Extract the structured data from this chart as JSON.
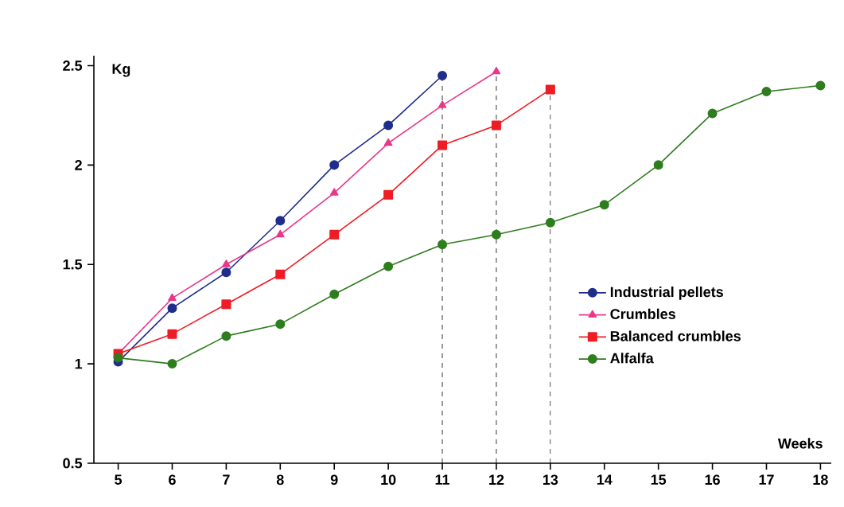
{
  "chart_data": {
    "type": "line",
    "xlabel": "Weeks",
    "ylabel": "Kg",
    "x": [
      5,
      6,
      7,
      8,
      9,
      10,
      11,
      12,
      13,
      14,
      15,
      16,
      17,
      18
    ],
    "series": [
      {
        "name": "Industrial pellets",
        "color": "#1f2d8c",
        "marker": "circle",
        "values": [
          1.01,
          1.28,
          1.46,
          1.72,
          2.0,
          2.2,
          2.45,
          null,
          null,
          null,
          null,
          null,
          null,
          null
        ]
      },
      {
        "name": "Crumbles",
        "color": "#e8388a",
        "marker": "triangle",
        "values": [
          1.05,
          1.33,
          1.5,
          1.65,
          1.86,
          2.11,
          2.3,
          2.47,
          null,
          null,
          null,
          null,
          null,
          null
        ]
      },
      {
        "name": "Balanced crumbles",
        "color": "#ee1c24",
        "marker": "square",
        "values": [
          1.05,
          1.15,
          1.3,
          1.45,
          1.65,
          1.85,
          2.1,
          2.2,
          2.38,
          null,
          null,
          null,
          null,
          null
        ]
      },
      {
        "name": "Alfalfa",
        "color": "#2e7d1e",
        "marker": "circle",
        "values": [
          1.03,
          1.0,
          1.14,
          1.2,
          1.35,
          1.49,
          1.6,
          1.65,
          1.71,
          1.8,
          2.0,
          2.26,
          2.37,
          2.4
        ]
      }
    ],
    "xlim": [
      4.55,
      18.2
    ],
    "ylim": [
      0.5,
      2.55
    ],
    "xticks": [
      5,
      6,
      7,
      8,
      9,
      10,
      11,
      12,
      13,
      14,
      15,
      16,
      17,
      18
    ],
    "yticks": [
      0.5,
      1,
      1.5,
      2,
      2.5
    ],
    "ref_lines": [
      {
        "axis": "x",
        "value": 11,
        "line_style": "dashed"
      },
      {
        "axis": "x",
        "value": 12,
        "line_style": "dashed"
      },
      {
        "axis": "x",
        "value": 13,
        "line_style": "dashed"
      }
    ],
    "grid": false,
    "legend": "right",
    "line_style": "solid"
  }
}
